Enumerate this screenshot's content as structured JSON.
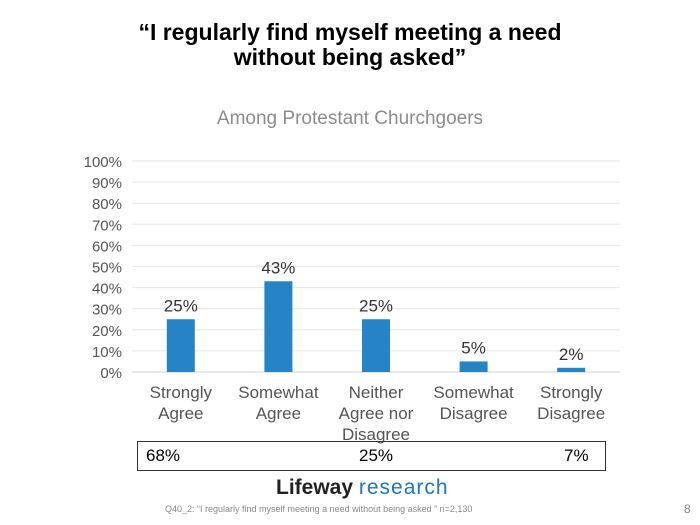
{
  "title_line1": "“I regularly find myself meeting a need",
  "title_line2": "without being asked”",
  "chart_data": {
    "type": "bar",
    "title": "Among Protestant Churchgoers",
    "categories": [
      [
        "Strongly",
        "Agree"
      ],
      [
        "Somewhat",
        "Agree"
      ],
      [
        "Neither",
        "Agree nor",
        "Disagree"
      ],
      [
        "Somewhat",
        "Disagree"
      ],
      [
        "Strongly",
        "Disagree"
      ]
    ],
    "values": [
      25,
      43,
      25,
      5,
      2
    ],
    "data_labels": [
      "25%",
      "43%",
      "25%",
      "5%",
      "2%"
    ],
    "ylim": [
      0,
      100
    ],
    "yticks": [
      "0%",
      "10%",
      "20%",
      "30%",
      "40%",
      "50%",
      "60%",
      "70%",
      "80%",
      "90%",
      "100%"
    ],
    "grid": true,
    "bar_color": "#2683c6"
  },
  "summary": {
    "agree": "68%",
    "neither": "25%",
    "disagree": "7%"
  },
  "logo": {
    "word1": "Lifeway",
    "word2": "research"
  },
  "footnote": "Q40_2: “I regularly find myself meeting a need without being asked ”  n=2,130",
  "page_number": "8"
}
